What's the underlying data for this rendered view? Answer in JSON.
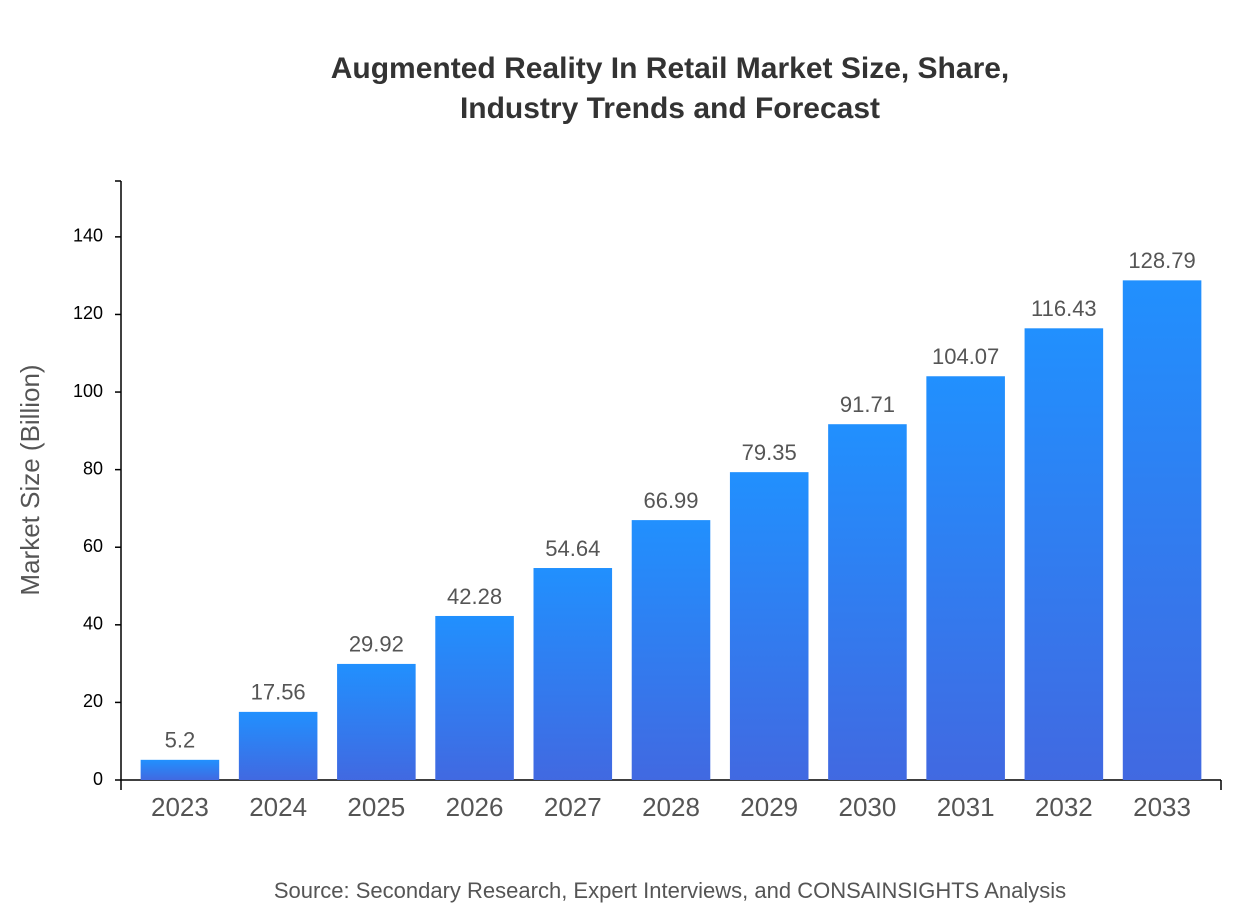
{
  "chart_data": {
    "type": "bar",
    "title": [
      "Augmented Reality In Retail Market Size, Share,",
      "Industry Trends and Forecast"
    ],
    "y_label": "Market Size (Billion)",
    "source": "Source: Secondary Research, Expert Interviews, and CONSAINSIGHTS Analysis",
    "categories": [
      "2023",
      "2024",
      "2025",
      "2026",
      "2027",
      "2028",
      "2029",
      "2030",
      "2031",
      "2032",
      "2033"
    ],
    "values": [
      5.2,
      17.56,
      29.92,
      42.28,
      54.64,
      66.99,
      79.35,
      91.71,
      104.07,
      116.43,
      128.79
    ],
    "colors": [
      "#2190fe",
      "#4169e1"
    ],
    "ylim": [
      0,
      154.4
    ],
    "yticks": [
      0,
      20,
      40,
      60,
      80,
      100,
      120,
      140
    ],
    "grid": false
  }
}
